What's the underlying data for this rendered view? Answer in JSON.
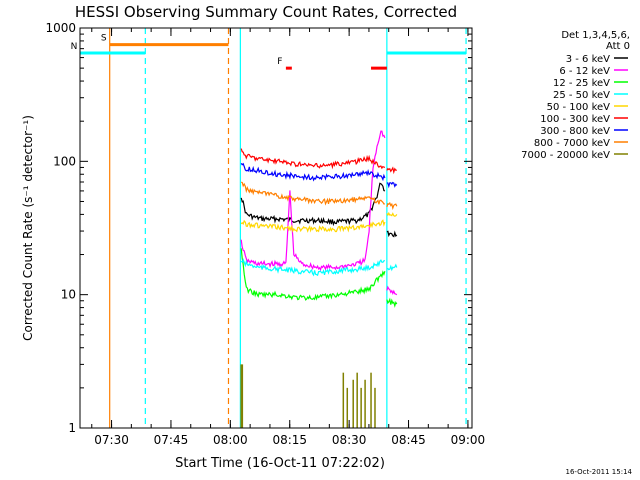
{
  "chart_data": {
    "type": "line",
    "title": "HESSI Observing Summary Count Rates, Corrected",
    "xlabel": "Start Time (16-Oct-11 07:22:02)",
    "ylabel": "Corrected Count Rate (s⁻¹ detector⁻¹)",
    "yscale": "log",
    "ylim": [
      1,
      1000
    ],
    "xlim_minutes": [
      0,
      99
    ],
    "x_ticks": [
      {
        "label": "07:30",
        "min": 7.97
      },
      {
        "label": "07:45",
        "min": 22.97
      },
      {
        "label": "08:00",
        "min": 37.97
      },
      {
        "label": "08:15",
        "min": 52.97
      },
      {
        "label": "08:30",
        "min": 67.97
      },
      {
        "label": "08:45",
        "min": 82.97
      },
      {
        "label": "09:00",
        "min": 97.97
      }
    ],
    "y_ticks": [
      {
        "label": "1",
        "value": 1
      },
      {
        "label": "10",
        "value": 10
      },
      {
        "label": "100",
        "value": 100
      },
      {
        "label": "1000",
        "value": 1000
      }
    ],
    "legend": {
      "position": "right",
      "header": [
        "Det 1,3,4,5,6,",
        "Att 0"
      ],
      "entries": [
        {
          "label": "3 - 6 keV",
          "color": "#000000"
        },
        {
          "label": "6 - 12 keV",
          "color": "#ff00ff"
        },
        {
          "label": "12 - 25 keV",
          "color": "#00ff00"
        },
        {
          "label": "25 - 50 keV",
          "color": "#00ffff"
        },
        {
          "label": "50 - 100 keV",
          "color": "#ffd700"
        },
        {
          "label": "100 - 300 keV",
          "color": "#ff0000"
        },
        {
          "label": "300 - 800 keV",
          "color": "#0000ff"
        },
        {
          "label": "800 - 7000 keV",
          "color": "#ff7f00"
        },
        {
          "label": "7000 - 20000 keV",
          "color": "#808000"
        }
      ]
    },
    "series": [
      {
        "name": "3 - 6 keV",
        "color": "#000000",
        "x": [
          40.7,
          42,
          44,
          46,
          50,
          55,
          60,
          65,
          70,
          73,
          75,
          76,
          77
        ],
        "y": [
          55,
          40,
          38,
          37,
          37,
          36,
          36,
          35,
          36,
          40,
          55,
          70,
          60
        ]
      },
      {
        "name": "6 - 12 keV",
        "color": "#ff00ff",
        "x": [
          40.7,
          42,
          45,
          50,
          52,
          53,
          54,
          56,
          60,
          65,
          70,
          72,
          73,
          74,
          75,
          76,
          77
        ],
        "y": [
          25,
          18,
          17,
          17,
          17,
          60,
          20,
          17,
          16,
          16,
          17,
          18,
          30,
          90,
          130,
          170,
          150
        ]
      },
      {
        "name": "12 - 25 keV",
        "color": "#00ff00",
        "x": [
          40.7,
          42,
          45,
          50,
          55,
          60,
          65,
          70,
          73,
          75,
          77
        ],
        "y": [
          22,
          11,
          10,
          10,
          9.5,
          9.5,
          10,
          10.5,
          11,
          13,
          15
        ]
      },
      {
        "name": "25 - 50 keV",
        "color": "#00ffff",
        "x": [
          40.7,
          42,
          45,
          50,
          55,
          60,
          65,
          70,
          73,
          75,
          77
        ],
        "y": [
          18,
          17,
          16,
          15.5,
          15,
          14.5,
          15,
          15.5,
          16,
          17,
          18
        ]
      },
      {
        "name": "50 - 100 keV",
        "color": "#ffd700",
        "x": [
          40.7,
          42,
          45,
          50,
          55,
          60,
          65,
          70,
          73,
          75,
          77
        ],
        "y": [
          35,
          34,
          33,
          32,
          31,
          31,
          31,
          32,
          33,
          34,
          35
        ]
      },
      {
        "name": "100 - 300 keV",
        "color": "#ff0000",
        "x": [
          40.7,
          42,
          45,
          50,
          55,
          60,
          65,
          70,
          73,
          75,
          77
        ],
        "y": [
          120,
          110,
          105,
          100,
          95,
          92,
          95,
          100,
          105,
          95,
          90
        ]
      },
      {
        "name": "300 - 800 keV",
        "color": "#0000ff",
        "x": [
          40.7,
          42,
          45,
          50,
          55,
          60,
          65,
          70,
          73,
          75,
          77
        ],
        "y": [
          95,
          88,
          85,
          80,
          77,
          75,
          77,
          80,
          82,
          78,
          75
        ]
      },
      {
        "name": "800 - 7000 keV",
        "color": "#ff7f00",
        "x": [
          40.7,
          42,
          45,
          50,
          55,
          60,
          65,
          70,
          73,
          75,
          77
        ],
        "y": [
          70,
          62,
          58,
          55,
          52,
          50,
          50,
          52,
          54,
          50,
          48
        ]
      }
    ],
    "after_gap": [
      {
        "name": "3 - 6 keV",
        "x": [
          77.5,
          80
        ],
        "y": [
          29,
          28
        ]
      },
      {
        "name": "6 - 12 keV",
        "x": [
          77.5,
          80
        ],
        "y": [
          11,
          10
        ]
      },
      {
        "name": "12 - 25 keV",
        "x": [
          77.5,
          80
        ],
        "y": [
          9,
          8.5
        ]
      },
      {
        "name": "25 - 50 keV",
        "x": [
          77.5,
          80
        ],
        "y": [
          16,
          16
        ]
      },
      {
        "name": "50 - 100 keV",
        "x": [
          77.5,
          80
        ],
        "y": [
          40,
          40
        ]
      },
      {
        "name": "100 - 300 keV",
        "x": [
          77.5,
          80
        ],
        "y": [
          88,
          86
        ]
      },
      {
        "name": "300 - 800 keV",
        "x": [
          77.5,
          80
        ],
        "y": [
          68,
          66
        ]
      },
      {
        "name": "800 - 7000 keV",
        "x": [
          77.5,
          80
        ],
        "y": [
          47,
          46
        ]
      }
    ],
    "attenuator_flags": [
      {
        "label": "S",
        "color": "#ff7f00",
        "start_min": 7.5,
        "end_min": 37.5,
        "value": 750
      },
      {
        "label": "N",
        "color": "#00ffff",
        "start_min": 0,
        "end_min": 16.5,
        "value": 650
      },
      {
        "label": "",
        "color": "#00ffff",
        "start_min": 77.5,
        "end_min": 97.5,
        "value": 650
      },
      {
        "label": "F",
        "color": "#ff0000",
        "start_min": 52,
        "end_min": 53.5,
        "value": 500
      },
      {
        "label": "",
        "color": "#ff0000",
        "start_min": 73.5,
        "end_min": 77.5,
        "value": 500
      }
    ],
    "olive_spikes_min": [
      40.7,
      41.0,
      66.5,
      67.5,
      69.0,
      70.0,
      71.0,
      72.0,
      73.5,
      74.5
    ],
    "vertical_markers": [
      {
        "min": 7.5,
        "color": "#ff7f00",
        "style": "solid"
      },
      {
        "min": 16.5,
        "color": "#00ffff",
        "style": "dashed"
      },
      {
        "min": 37.5,
        "color": "#ff7f00",
        "style": "dashed"
      },
      {
        "min": 40.5,
        "color": "#00ffff",
        "style": "solid"
      },
      {
        "min": 77.5,
        "color": "#00ffff",
        "style": "solid"
      },
      {
        "min": 97.5,
        "color": "#00ffff",
        "style": "dashed"
      }
    ],
    "grid": false
  },
  "timestamp": "16-Oct-2011 15:14"
}
